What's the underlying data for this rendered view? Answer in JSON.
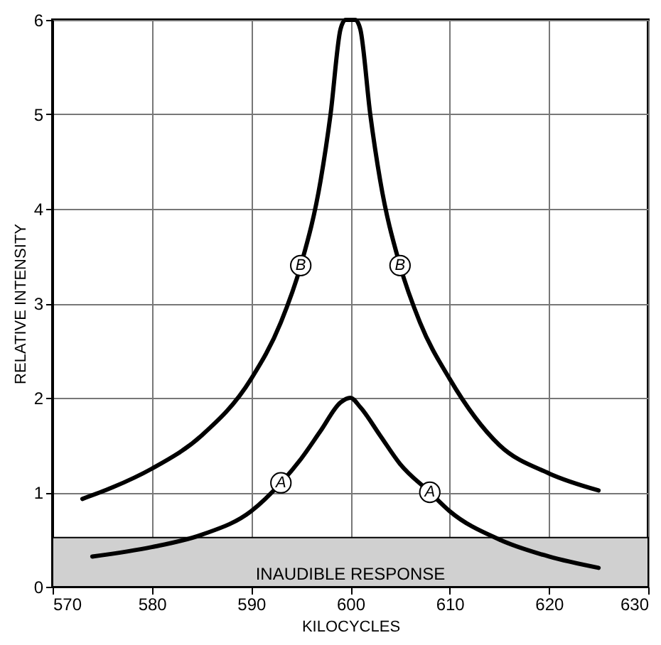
{
  "chart_data": {
    "type": "line",
    "xlabel": "KILOCYCLES",
    "ylabel": "RELATIVE INTENSITY",
    "series": [
      {
        "name": "B",
        "color": "#000000",
        "x": [
          573,
          576,
          580,
          585,
          590,
          593,
          595,
          597,
          598,
          599,
          599.5,
          600.5,
          601,
          602,
          603,
          605,
          607,
          610,
          615,
          620,
          625
        ],
        "values": [
          0.93,
          1.05,
          1.25,
          1.6,
          2.2,
          2.8,
          3.4,
          4.3,
          5.0,
          5.9,
          6.0,
          6.0,
          5.9,
          5.0,
          4.3,
          3.4,
          2.8,
          2.2,
          1.5,
          1.2,
          1.02
        ]
      },
      {
        "name": "A",
        "color": "#000000",
        "x": [
          574,
          580,
          585,
          590,
          593,
          595,
          597,
          599,
          600,
          601,
          603,
          605,
          608,
          610,
          615,
          620,
          625
        ],
        "values": [
          0.32,
          0.42,
          0.55,
          0.8,
          1.1,
          1.35,
          1.65,
          1.95,
          2.0,
          1.9,
          1.6,
          1.3,
          1.0,
          0.8,
          0.5,
          0.32,
          0.2
        ]
      }
    ],
    "xlim": [
      570,
      630
    ],
    "xticks": [
      570,
      580,
      590,
      600,
      610,
      620,
      630
    ],
    "ylim": [
      0,
      6
    ],
    "yticks": [
      0,
      1,
      2,
      3,
      4,
      5,
      6
    ],
    "bands": [
      {
        "axis": "y",
        "from": 0,
        "to": 0.52,
        "label": "INAUDIBLE RESPONSE",
        "color": "#d0d0d0"
      }
    ],
    "grid": true,
    "marker": "none",
    "line_style": "solid"
  }
}
